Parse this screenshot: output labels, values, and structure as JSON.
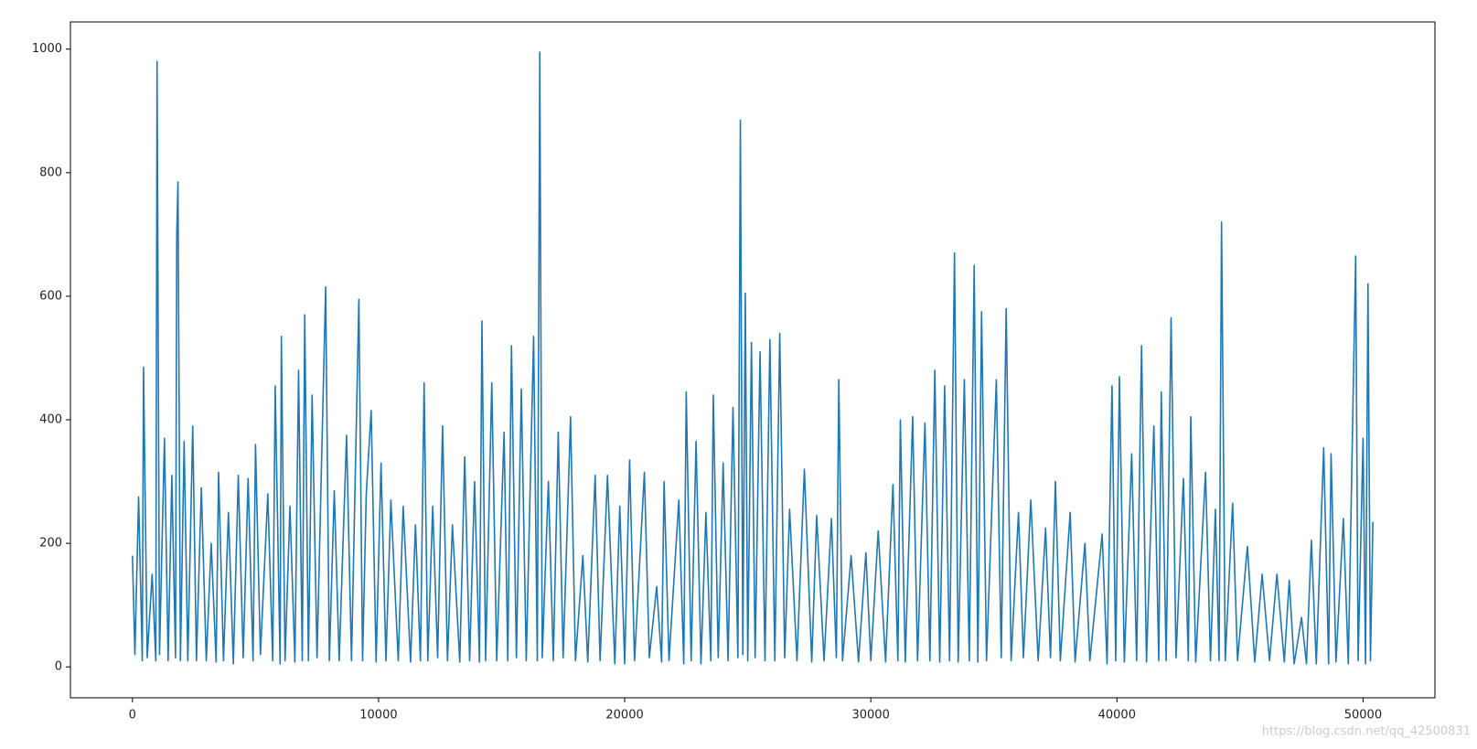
{
  "chart_data": {
    "type": "line",
    "x": [
      0,
      100,
      250,
      400,
      450,
      600,
      800,
      950,
      1000,
      1100,
      1300,
      1450,
      1600,
      1750,
      1800,
      1850,
      1950,
      2100,
      2250,
      2450,
      2600,
      2800,
      3000,
      3200,
      3400,
      3500,
      3700,
      3900,
      4100,
      4300,
      4500,
      4700,
      4900,
      5000,
      5200,
      5500,
      5700,
      5800,
      6000,
      6050,
      6200,
      6400,
      6600,
      6750,
      6900,
      7000,
      7150,
      7300,
      7500,
      7800,
      7850,
      8000,
      8200,
      8400,
      8700,
      8900,
      9200,
      9350,
      9500,
      9700,
      9900,
      10100,
      10300,
      10500,
      10800,
      11000,
      11300,
      11500,
      11700,
      11850,
      12000,
      12200,
      12400,
      12600,
      12800,
      13000,
      13300,
      13500,
      13700,
      13900,
      14100,
      14200,
      14350,
      14600,
      14800,
      15100,
      15250,
      15400,
      15600,
      15800,
      16000,
      16300,
      16450,
      16550,
      16650,
      16900,
      17100,
      17300,
      17500,
      17800,
      18000,
      18300,
      18500,
      18800,
      19000,
      19300,
      19600,
      19800,
      20000,
      20200,
      20400,
      20800,
      21000,
      21300,
      21500,
      21600,
      21800,
      22200,
      22400,
      22500,
      22700,
      22900,
      23100,
      23300,
      23500,
      23600,
      23800,
      24000,
      24200,
      24400,
      24600,
      24700,
      24800,
      24900,
      25000,
      25150,
      25300,
      25500,
      25700,
      25900,
      26100,
      26300,
      26500,
      26700,
      27000,
      27300,
      27600,
      27800,
      28100,
      28400,
      28600,
      28700,
      28850,
      29200,
      29500,
      29800,
      30000,
      30300,
      30600,
      30900,
      31100,
      31200,
      31400,
      31700,
      31900,
      32200,
      32400,
      32600,
      32800,
      33000,
      33200,
      33400,
      33550,
      33800,
      34000,
      34200,
      34350,
      34500,
      34700,
      35100,
      35300,
      35500,
      35700,
      36000,
      36200,
      36500,
      36800,
      37100,
      37300,
      37500,
      37700,
      38100,
      38300,
      38700,
      38900,
      39400,
      39600,
      39800,
      39950,
      40100,
      40300,
      40600,
      40800,
      41000,
      41200,
      41500,
      41700,
      41800,
      42000,
      42200,
      42400,
      42700,
      42900,
      43000,
      43200,
      43600,
      43800,
      44000,
      44150,
      44250,
      44400,
      44700,
      44900,
      45300,
      45600,
      45900,
      46200,
      46500,
      46800,
      47000,
      47200,
      47500,
      47700,
      47900,
      48100,
      48400,
      48600,
      48700,
      48900,
      49200,
      49400,
      49700,
      49800,
      50000,
      50100,
      50200,
      50300,
      50400
    ],
    "values": [
      180,
      20,
      275,
      10,
      485,
      15,
      150,
      10,
      980,
      20,
      370,
      10,
      310,
      15,
      700,
      785,
      10,
      365,
      10,
      390,
      10,
      290,
      10,
      200,
      8,
      315,
      10,
      250,
      5,
      310,
      15,
      305,
      10,
      360,
      20,
      280,
      10,
      455,
      5,
      535,
      10,
      260,
      8,
      480,
      10,
      570,
      10,
      440,
      15,
      530,
      615,
      10,
      285,
      10,
      375,
      10,
      595,
      10,
      280,
      415,
      8,
      330,
      10,
      270,
      10,
      260,
      8,
      230,
      10,
      460,
      10,
      260,
      15,
      390,
      10,
      230,
      8,
      340,
      10,
      300,
      8,
      560,
      10,
      460,
      10,
      380,
      10,
      520,
      15,
      450,
      10,
      535,
      10,
      995,
      15,
      300,
      10,
      380,
      15,
      405,
      10,
      180,
      8,
      310,
      10,
      310,
      5,
      260,
      5,
      335,
      10,
      315,
      15,
      130,
      8,
      300,
      10,
      270,
      5,
      445,
      10,
      365,
      5,
      250,
      10,
      440,
      15,
      330,
      10,
      420,
      15,
      885,
      20,
      605,
      10,
      525,
      15,
      510,
      10,
      530,
      10,
      540,
      15,
      255,
      10,
      320,
      8,
      245,
      10,
      240,
      15,
      465,
      10,
      180,
      8,
      185,
      10,
      220,
      8,
      295,
      10,
      400,
      8,
      405,
      10,
      395,
      10,
      480,
      8,
      455,
      10,
      670,
      8,
      465,
      10,
      650,
      8,
      575,
      10,
      465,
      15,
      580,
      10,
      250,
      15,
      270,
      10,
      225,
      15,
      300,
      10,
      250,
      8,
      200,
      10,
      215,
      5,
      455,
      10,
      470,
      8,
      345,
      10,
      520,
      8,
      390,
      10,
      445,
      10,
      565,
      15,
      305,
      10,
      405,
      8,
      315,
      10,
      255,
      10,
      720,
      10,
      265,
      10,
      195,
      8,
      150,
      10,
      150,
      8,
      140,
      5,
      80,
      5,
      205,
      5,
      355,
      5,
      345,
      8,
      240,
      5,
      665,
      10,
      370,
      5,
      620,
      10,
      235
    ],
    "color": "#1f77b4",
    "xlim": [
      -2520,
      52920
    ],
    "xticks": [
      0,
      10000,
      20000,
      30000,
      40000,
      50000
    ],
    "ylim": [
      -50,
      1044
    ],
    "yticks": [
      0,
      200,
      400,
      600,
      800,
      1000
    ],
    "watermark": "https://blog.csdn.net/qq_42500831"
  }
}
